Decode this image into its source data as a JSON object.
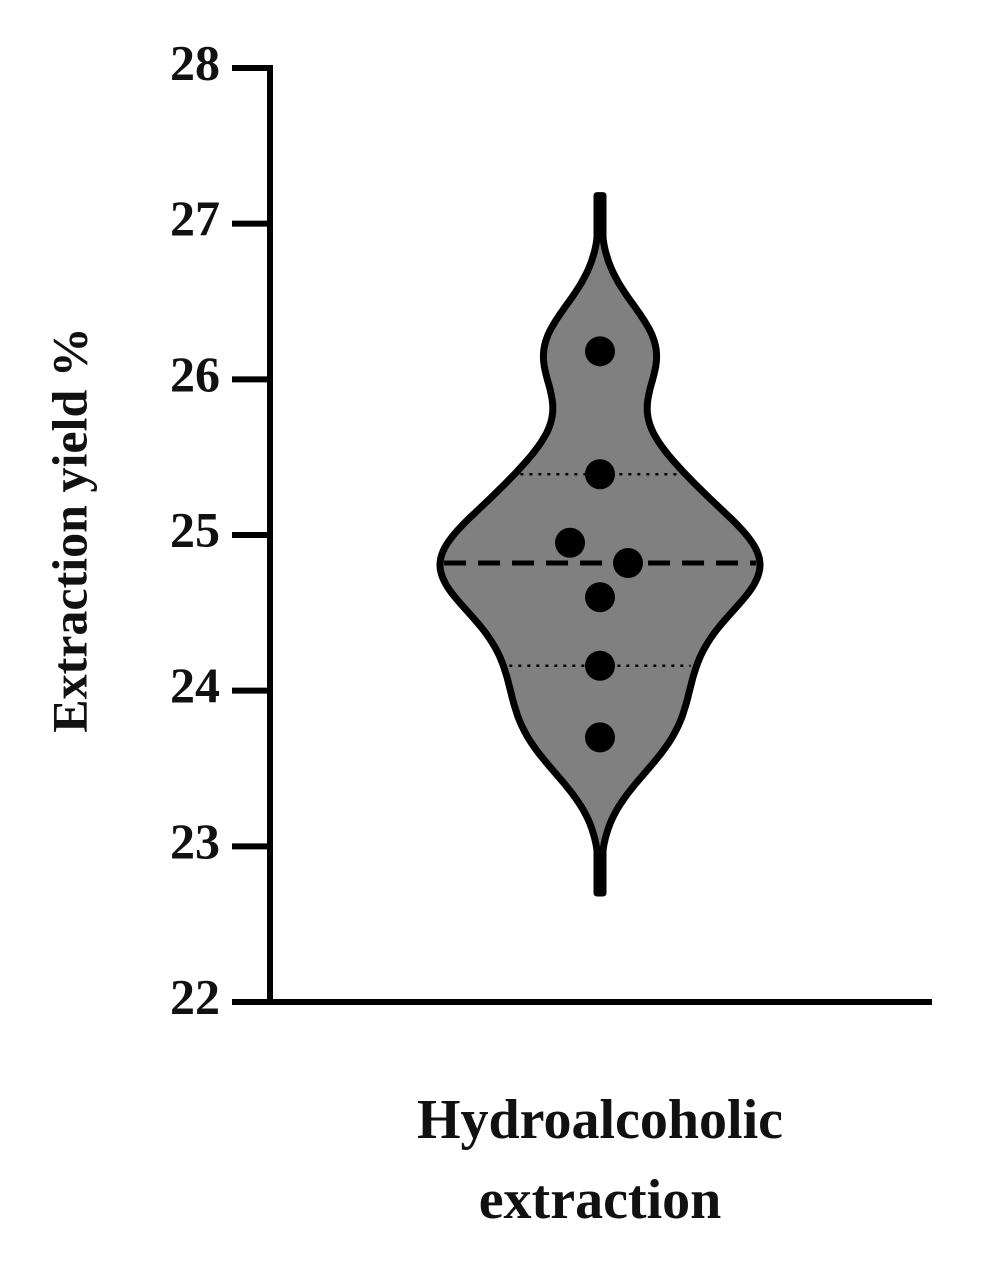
{
  "chart_data": {
    "type": "violin",
    "y_label": "Extraction yield %",
    "categories": [
      "Hydroalcoholic extraction"
    ],
    "values": [
      26.18,
      25.39,
      24.95,
      24.82,
      24.6,
      24.16,
      23.7
    ],
    "median": 24.82,
    "quartiles": [
      24.16,
      25.39
    ],
    "color": "#808080",
    "ylim": [
      22,
      28
    ],
    "yticks": [
      22,
      23,
      24,
      25,
      26,
      27,
      28
    ]
  }
}
